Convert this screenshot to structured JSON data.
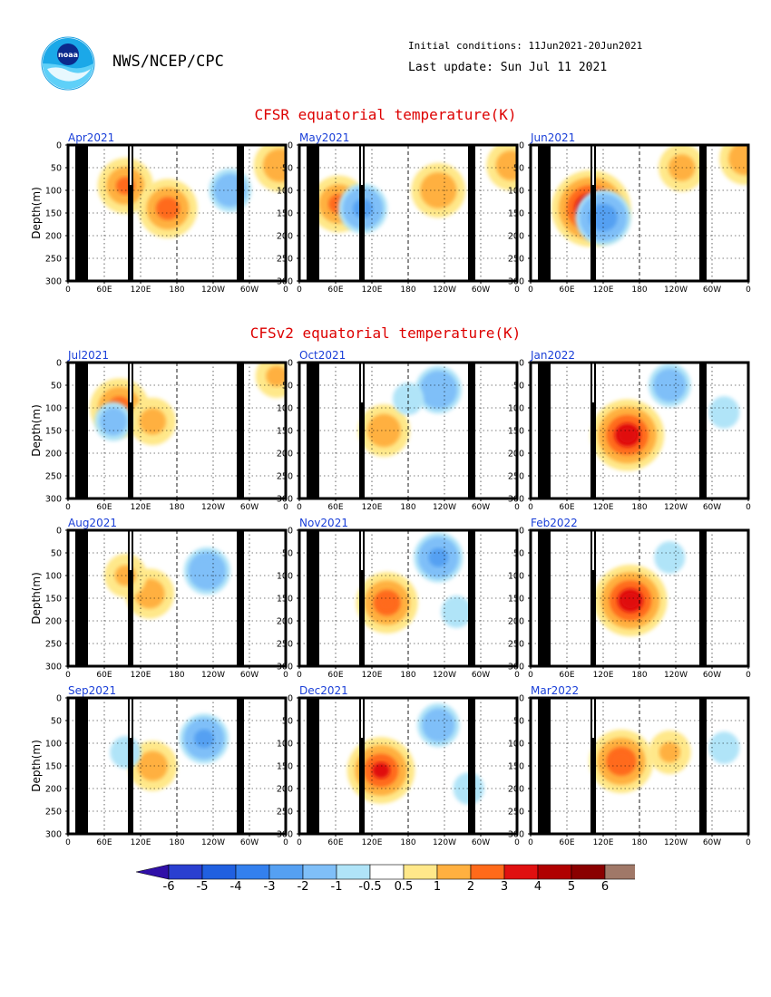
{
  "header": {
    "agency": "NWS/NCEP/CPC",
    "logo_text": "noaa",
    "initial_conditions": "Initial conditions: 11Jun2021-20Jun2021",
    "last_update": "Last update: Sun Jul 11 2021"
  },
  "sections": {
    "cfsr_title": "CFSR equatorial temperature(K)",
    "cfsv2_title": "CFSv2 equatorial temperature(K)"
  },
  "axes": {
    "ylabel": "Depth(m)",
    "yticks": [
      "0",
      "50",
      "100",
      "150",
      "200",
      "250",
      "300"
    ],
    "xticks": [
      "0",
      "60E",
      "120E",
      "180",
      "120W",
      "60W",
      "0"
    ]
  },
  "colorbar": {
    "labels": [
      "-6",
      "-5",
      "-4",
      "-3",
      "-2",
      "-1",
      "-0.5",
      "0.5",
      "1",
      "2",
      "3",
      "4",
      "5",
      "6"
    ],
    "colors": [
      "#3010a8",
      "#2a3fd0",
      "#2060e0",
      "#3380ee",
      "#55a0f2",
      "#7fbff8",
      "#b0e4f8",
      "#ffffff",
      "#ffe88a",
      "#ffb040",
      "#ff6a1a",
      "#e01010",
      "#b00000",
      "#8a0000",
      "#a07868",
      "#6a3a2a"
    ]
  },
  "chart_data": [
    {
      "panel": "Apr2021",
      "type": "heatmap",
      "dataset": "CFSR",
      "xrange_lon": [
        0,
        360
      ],
      "yrange_depth_m": [
        0,
        300
      ],
      "features": [
        {
          "lon": 95,
          "depth": 90,
          "anomaly": 2.5
        },
        {
          "lon": 165,
          "depth": 140,
          "anomaly": 2.8
        },
        {
          "lon": 350,
          "depth": 45,
          "anomaly": 2.2
        },
        {
          "lon": 268,
          "depth": 100,
          "anomaly": -1.5
        }
      ]
    },
    {
      "panel": "May2021",
      "type": "heatmap",
      "dataset": "CFSR",
      "xrange_lon": [
        0,
        360
      ],
      "yrange_depth_m": [
        0,
        300
      ],
      "features": [
        {
          "lon": 65,
          "depth": 130,
          "anomaly": 2.6
        },
        {
          "lon": 230,
          "depth": 100,
          "anomaly": 2.4
        },
        {
          "lon": 350,
          "depth": 45,
          "anomaly": 2.0
        },
        {
          "lon": 105,
          "depth": 140,
          "anomaly": -2.0
        }
      ]
    },
    {
      "panel": "Jun2021",
      "type": "heatmap",
      "dataset": "CFSR",
      "xrange_lon": [
        0,
        360
      ],
      "yrange_depth_m": [
        0,
        300
      ],
      "features": [
        {
          "lon": 100,
          "depth": 140,
          "anomaly": 4.5
        },
        {
          "lon": 250,
          "depth": 50,
          "anomaly": 1.8
        },
        {
          "lon": 355,
          "depth": 30,
          "anomaly": 2.2
        },
        {
          "lon": 120,
          "depth": 160,
          "anomaly": -2.5
        }
      ]
    },
    {
      "panel": "Jul2021",
      "type": "heatmap",
      "dataset": "CFSv2",
      "xrange_lon": [
        0,
        360
      ],
      "yrange_depth_m": [
        0,
        300
      ],
      "features": [
        {
          "lon": 85,
          "depth": 100,
          "anomaly": 2.8
        },
        {
          "lon": 140,
          "depth": 130,
          "anomaly": 1.8
        },
        {
          "lon": 345,
          "depth": 30,
          "anomaly": 1.5
        },
        {
          "lon": 75,
          "depth": 130,
          "anomaly": -1.2
        }
      ]
    },
    {
      "panel": "Oct2021",
      "type": "heatmap",
      "dataset": "CFSv2",
      "xrange_lon": [
        0,
        360
      ],
      "yrange_depth_m": [
        0,
        300
      ],
      "features": [
        {
          "lon": 140,
          "depth": 150,
          "anomaly": 2.2
        },
        {
          "lon": 230,
          "depth": 60,
          "anomaly": -1.8
        },
        {
          "lon": 180,
          "depth": 80,
          "anomaly": -0.8
        }
      ]
    },
    {
      "panel": "Jan2022",
      "type": "heatmap",
      "dataset": "CFSv2",
      "xrange_lon": [
        0,
        360
      ],
      "yrange_depth_m": [
        0,
        300
      ],
      "features": [
        {
          "lon": 160,
          "depth": 160,
          "anomaly": 4.0
        },
        {
          "lon": 230,
          "depth": 50,
          "anomaly": -1.5
        },
        {
          "lon": 320,
          "depth": 110,
          "anomaly": -0.8
        }
      ]
    },
    {
      "panel": "Aug2021",
      "type": "heatmap",
      "dataset": "CFSv2",
      "xrange_lon": [
        0,
        360
      ],
      "yrange_depth_m": [
        0,
        300
      ],
      "features": [
        {
          "lon": 135,
          "depth": 140,
          "anomaly": 2.0
        },
        {
          "lon": 230,
          "depth": 90,
          "anomaly": -1.8
        },
        {
          "lon": 95,
          "depth": 100,
          "anomaly": 1.5
        }
      ]
    },
    {
      "panel": "Nov2021",
      "type": "heatmap",
      "dataset": "CFSv2",
      "xrange_lon": [
        0,
        360
      ],
      "yrange_depth_m": [
        0,
        300
      ],
      "features": [
        {
          "lon": 145,
          "depth": 160,
          "anomaly": 3.0
        },
        {
          "lon": 230,
          "depth": 60,
          "anomaly": -2.0
        },
        {
          "lon": 260,
          "depth": 180,
          "anomaly": -0.8
        }
      ]
    },
    {
      "panel": "Feb2022",
      "type": "heatmap",
      "dataset": "CFSv2",
      "xrange_lon": [
        0,
        360
      ],
      "yrange_depth_m": [
        0,
        300
      ],
      "features": [
        {
          "lon": 165,
          "depth": 155,
          "anomaly": 4.0
        },
        {
          "lon": 230,
          "depth": 60,
          "anomaly": -0.8
        }
      ]
    },
    {
      "panel": "Sep2021",
      "type": "heatmap",
      "dataset": "CFSv2",
      "xrange_lon": [
        0,
        360
      ],
      "yrange_depth_m": [
        0,
        300
      ],
      "features": [
        {
          "lon": 140,
          "depth": 150,
          "anomaly": 2.0
        },
        {
          "lon": 225,
          "depth": 90,
          "anomaly": -2.0
        },
        {
          "lon": 95,
          "depth": 120,
          "anomaly": -0.8
        }
      ]
    },
    {
      "panel": "Dec2021",
      "type": "heatmap",
      "dataset": "CFSv2",
      "xrange_lon": [
        0,
        360
      ],
      "yrange_depth_m": [
        0,
        300
      ],
      "features": [
        {
          "lon": 135,
          "depth": 160,
          "anomaly": 3.5
        },
        {
          "lon": 230,
          "depth": 60,
          "anomaly": -1.5
        },
        {
          "lon": 280,
          "depth": 200,
          "anomaly": -0.8
        }
      ]
    },
    {
      "panel": "Mar2022",
      "type": "heatmap",
      "dataset": "CFSv2",
      "xrange_lon": [
        0,
        360
      ],
      "yrange_depth_m": [
        0,
        300
      ],
      "features": [
        {
          "lon": 150,
          "depth": 140,
          "anomaly": 3.2
        },
        {
          "lon": 230,
          "depth": 120,
          "anomaly": 1.5
        },
        {
          "lon": 320,
          "depth": 110,
          "anomaly": -0.8
        }
      ]
    }
  ]
}
